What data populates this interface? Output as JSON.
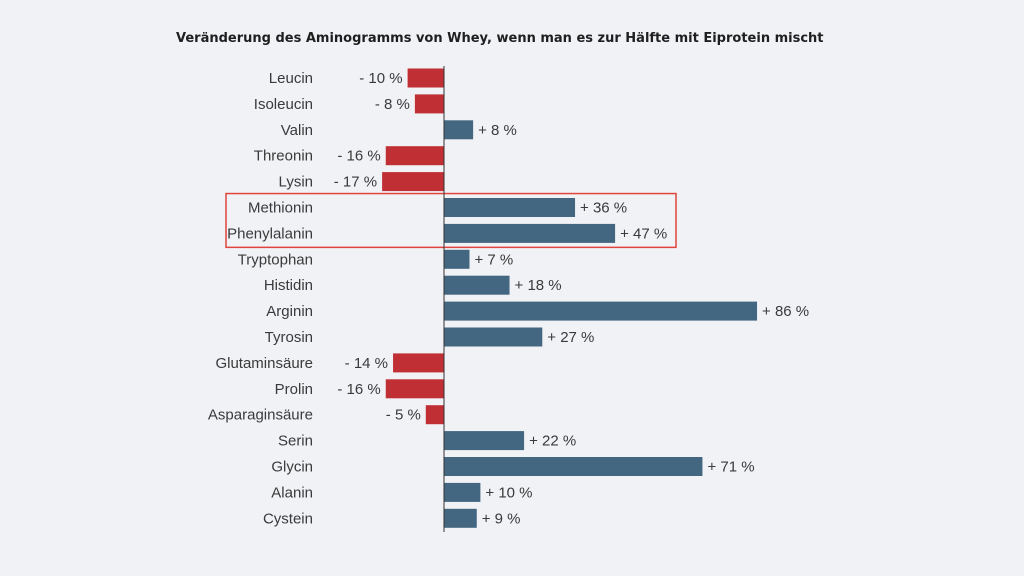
{
  "chart_data": {
    "type": "bar",
    "orientation": "horizontal",
    "title": "Veränderung des Aminogramms von Whey, wenn man es zur Hälfte mit Eiprotein mischt",
    "categories": [
      "Leucin",
      "Isoleucin",
      "Valin",
      "Threonin",
      "Lysin",
      "Methionin",
      "Phenylalanin",
      "Tryptophan",
      "Histidin",
      "Arginin",
      "Tyrosin",
      "Glutaminsäure",
      "Prolin",
      "Asparaginsäure",
      "Serin",
      "Glycin",
      "Alanin",
      "Cystein"
    ],
    "values": [
      -10,
      -8,
      8,
      -16,
      -17,
      36,
      47,
      7,
      18,
      86,
      27,
      -14,
      -16,
      -5,
      22,
      71,
      10,
      9
    ],
    "value_labels": [
      "- 10 %",
      "- 8 %",
      "+ 8 %",
      "- 16 %",
      "- 17 %",
      "+ 36 %",
      "+ 47 %",
      "+ 7 %",
      "+ 18 %",
      "+ 86 %",
      "+ 27 %",
      "- 14 %",
      "- 16 %",
      "- 5 %",
      "+ 22 %",
      "+ 71 %",
      "+ 10 %",
      "+ 9 %"
    ],
    "highlighted": [
      "Methionin",
      "Phenylalanin"
    ],
    "grid": false,
    "colors": {
      "positive": "#436681",
      "negative": "#bf2f33",
      "highlight_box": "#e0443d",
      "axis": "#333333"
    }
  }
}
